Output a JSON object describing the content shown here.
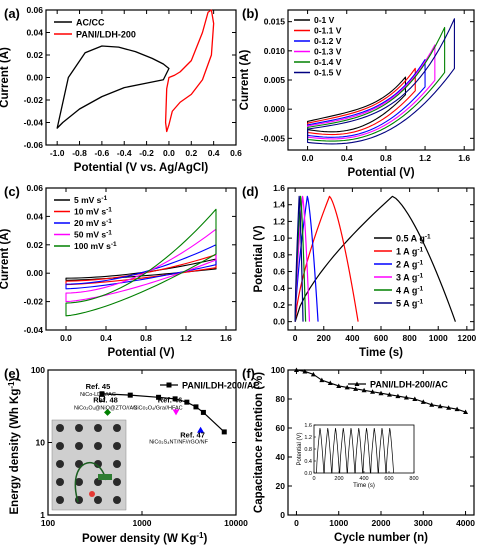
{
  "chart_data": [
    {
      "panel": "(a)",
      "type": "line",
      "xlabel": "Potential (V vs. Ag/AgCl)",
      "ylabel": "Current (A)",
      "xlim": [
        -1.1,
        0.6
      ],
      "ylim": [
        -0.06,
        0.06
      ],
      "xticks": [
        -1.0,
        -0.8,
        -0.6,
        -0.4,
        -0.2,
        0.0,
        0.2,
        0.4,
        0.6
      ],
      "xtick_labels": [
        "-1.0",
        "-0.8",
        "-0.6",
        "-0.4",
        "-0.2",
        "0.0",
        "0.2",
        "0.4",
        "0.6"
      ],
      "yticks": [
        -0.06,
        -0.04,
        -0.02,
        0.0,
        0.02,
        0.04,
        0.06
      ],
      "ytick_labels": [
        "-0.06",
        "-0.04",
        "-0.02",
        "0.00",
        "0.02",
        "0.04",
        "0.06"
      ],
      "legend": "top-left",
      "series": [
        {
          "name": "AC/CC",
          "color": "#000000",
          "x": [
            -1.0,
            -0.9,
            -0.75,
            -0.6,
            -0.45,
            -0.3,
            -0.15,
            -0.05,
            0.0,
            -0.05,
            -0.2,
            -0.4,
            -0.6,
            -0.8,
            -0.95,
            -1.0
          ],
          "y": [
            -0.045,
            0.0,
            0.022,
            0.028,
            0.027,
            0.023,
            0.017,
            0.012,
            0.008,
            -0.002,
            -0.005,
            -0.009,
            -0.017,
            -0.028,
            -0.04,
            -0.045
          ]
        },
        {
          "name": "PANI/LDH-200",
          "color": "#ff0000",
          "x": [
            0.0,
            0.05,
            0.1,
            0.2,
            0.3,
            0.35,
            0.38,
            0.4,
            0.38,
            0.3,
            0.2,
            0.1,
            0.03,
            0.0,
            -0.02,
            -0.03,
            -0.02,
            0.0
          ],
          "y": [
            0.0,
            0.002,
            0.005,
            0.015,
            0.04,
            0.058,
            0.06,
            0.048,
            0.02,
            -0.002,
            -0.015,
            -0.022,
            -0.03,
            -0.042,
            -0.048,
            -0.04,
            -0.01,
            0.0
          ]
        }
      ]
    },
    {
      "panel": "(b)",
      "type": "line",
      "xlabel": "Potential (V)",
      "ylabel": "Current (A)",
      "xlim": [
        -0.2,
        1.7
      ],
      "ylim": [
        -0.007,
        0.017
      ],
      "xticks": [
        0.0,
        0.4,
        0.8,
        1.2,
        1.6
      ],
      "xtick_labels": [
        "0.0",
        "0.4",
        "0.8",
        "1.2",
        "1.6"
      ],
      "yticks": [
        -0.005,
        0.0,
        0.005,
        0.01,
        0.015
      ],
      "ytick_labels": [
        "-0.005",
        "0.000",
        "0.005",
        "0.010",
        "0.015"
      ],
      "legend": "top-left",
      "series": [
        {
          "name": "0-1 V",
          "color": "#000000",
          "vmax": 1.0,
          "ipeak": 0.0055,
          "ilow": -0.0035
        },
        {
          "name": "0-1.1 V",
          "color": "#ff0000",
          "vmax": 1.1,
          "ipeak": 0.007,
          "ilow": -0.004
        },
        {
          "name": "0-1.2 V",
          "color": "#0000ff",
          "vmax": 1.2,
          "ipeak": 0.0085,
          "ilow": -0.0045
        },
        {
          "name": "0-1.3 V",
          "color": "#ff00ff",
          "vmax": 1.3,
          "ipeak": 0.011,
          "ilow": -0.0048
        },
        {
          "name": "0-1.4 V",
          "color": "#008000",
          "vmax": 1.4,
          "ipeak": 0.014,
          "ilow": -0.0052
        },
        {
          "name": "0-1.5 V",
          "color": "#000080",
          "vmax": 1.5,
          "ipeak": 0.0155,
          "ilow": -0.0057
        }
      ]
    },
    {
      "panel": "(c)",
      "type": "line",
      "xlabel": "Potential (V)",
      "ylabel": "Current (A)",
      "xlim": [
        -0.2,
        1.7
      ],
      "ylim": [
        -0.04,
        0.06
      ],
      "xticks": [
        0.0,
        0.4,
        0.8,
        1.2,
        1.6
      ],
      "xtick_labels": [
        "0.0",
        "0.4",
        "0.8",
        "1.2",
        "1.6"
      ],
      "yticks": [
        -0.04,
        -0.02,
        0.0,
        0.02,
        0.04,
        0.06
      ],
      "ytick_labels": [
        "-0.04",
        "-0.02",
        "0.00",
        "0.02",
        "0.04",
        "0.06"
      ],
      "legend": "top-left",
      "series": [
        {
          "name": "5 mV s",
          "sup": "-1",
          "color": "#000000",
          "ipeak": 0.01,
          "ilow": -0.005
        },
        {
          "name": "10 mV s",
          "sup": "-1",
          "color": "#ff0000",
          "ipeak": 0.013,
          "ilow": -0.008
        },
        {
          "name": "20 mV s",
          "sup": "-1",
          "color": "#0000ff",
          "ipeak": 0.02,
          "ilow": -0.011
        },
        {
          "name": "50 mV s",
          "sup": "-1",
          "color": "#ff00ff",
          "ipeak": 0.031,
          "ilow": -0.02
        },
        {
          "name": "100 mV s",
          "sup": "-1",
          "color": "#008000",
          "ipeak": 0.045,
          "ilow": -0.03
        }
      ]
    },
    {
      "panel": "(d)",
      "type": "line",
      "xlabel": "Time (s)",
      "ylabel": "Potential (V)",
      "xlim": [
        -50,
        1250
      ],
      "ylim": [
        -0.1,
        1.6
      ],
      "xticks": [
        0,
        200,
        400,
        600,
        800,
        1000,
        1200
      ],
      "xtick_labels": [
        "0",
        "200",
        "400",
        "600",
        "800",
        "1000",
        "1200"
      ],
      "yticks": [
        0.0,
        0.2,
        0.4,
        0.6,
        0.8,
        1.0,
        1.2,
        1.4,
        1.6
      ],
      "ytick_labels": [
        "0.0",
        "0.2",
        "0.4",
        "0.6",
        "0.8",
        "1.0",
        "1.2",
        "1.4",
        "1.6"
      ],
      "legend": "right",
      "series": [
        {
          "name": "0.5 A g",
          "sup": "-1",
          "color": "#000000",
          "tc": 680,
          "td": 1120
        },
        {
          "name": "1 A g",
          "sup": "-1",
          "color": "#ff0000",
          "tc": 240,
          "td": 440
        },
        {
          "name": "2 A g",
          "sup": "-1",
          "color": "#0000ff",
          "tc": 85,
          "td": 160
        },
        {
          "name": "3 A g",
          "sup": "-1",
          "color": "#ff00ff",
          "tc": 52,
          "td": 100
        },
        {
          "name": "4 A g",
          "sup": "-1",
          "color": "#008000",
          "tc": 38,
          "td": 73
        },
        {
          "name": "5 A g",
          "sup": "-1",
          "color": "#000080",
          "tc": 28,
          "td": 55
        }
      ]
    },
    {
      "panel": "(e)",
      "type": "scatter",
      "xlabel": "Power density (W Kg",
      "xlabel_sup": "-1",
      "xlabel_end": ")",
      "ylabel": "Energy density (Wh Kg",
      "ylabel_sup": "-1",
      "ylabel_end": ")",
      "xscale": "log",
      "yscale": "log",
      "xlim": [
        100,
        10000
      ],
      "ylim": [
        1,
        100
      ],
      "xticks": [
        100,
        1000,
        10000
      ],
      "xtick_labels": [
        "100",
        "1000",
        "10000"
      ],
      "yticks": [
        1,
        10,
        100
      ],
      "ytick_labels": [
        "1",
        "10",
        "100"
      ],
      "legend": "top-right",
      "series": [
        {
          "name": "PANI/LDH-200//AC",
          "color": "#000000",
          "x": [
            375,
            750,
            1500,
            2250,
            3000,
            3750,
            4500,
            7500
          ],
          "y": [
            47,
            45,
            42,
            40,
            36,
            31,
            26,
            14
          ]
        }
      ],
      "references": [
        {
          "label": "Ref. 45",
          "sublabel": "NiCo-LDH//AC",
          "x": 375,
          "y": 40,
          "color": "#000000",
          "marker": "square-open"
        },
        {
          "label": "Ref. 48",
          "sublabel": "NiCo₂O₄@NiO@ZTO//AC",
          "x": 430,
          "y": 26,
          "color": "#008000",
          "marker": "diamond"
        },
        {
          "label": "Ref. 46",
          "sublabel": "NiCo₂O₄/Gra//HFAC",
          "x": 2300,
          "y": 26,
          "color": "#ff00ff",
          "marker": "triangle-down"
        },
        {
          "label": "Ref. 47",
          "sublabel": "NiCo₂S₄NT/NF//rGO/NF",
          "x": 4200,
          "y": 15,
          "color": "#0000ff",
          "marker": "triangle-up"
        }
      ]
    },
    {
      "panel": "(f)",
      "type": "line",
      "xlabel": "Cycle number (n)",
      "ylabel": "Capacitance retention (%)",
      "xlim": [
        -200,
        4200
      ],
      "ylim": [
        0,
        100
      ],
      "xticks": [
        0,
        1000,
        2000,
        3000,
        4000
      ],
      "xtick_labels": [
        "0",
        "1000",
        "2000",
        "3000",
        "4000"
      ],
      "yticks": [
        0,
        20,
        40,
        60,
        80,
        100
      ],
      "ytick_labels": [
        "0",
        "20",
        "40",
        "60",
        "80",
        "100"
      ],
      "legend": "top-right",
      "series": [
        {
          "name": "PANI/LDH-200//AC",
          "color": "#000000",
          "x": [
            0,
            200,
            400,
            600,
            800,
            1000,
            1200,
            1400,
            1600,
            1800,
            2000,
            2200,
            2400,
            2600,
            2800,
            3000,
            3200,
            3400,
            3600,
            3800,
            4000
          ],
          "y": [
            100,
            99,
            97,
            93,
            91,
            89,
            88,
            87,
            86,
            85,
            84,
            83,
            82,
            81,
            80,
            78,
            76,
            75,
            74,
            73,
            71
          ]
        }
      ],
      "inset": {
        "xlabel": "Time (s)",
        "ylabel": "Potential (V)",
        "xlim": [
          0,
          800
        ],
        "ylim": [
          0,
          1.6
        ],
        "xticks": [
          0,
          200,
          400,
          600,
          800
        ],
        "xtick_labels": [
          "0",
          "200",
          "400",
          "600",
          "800"
        ],
        "yticks": [
          0.0,
          0.4,
          0.8,
          1.2,
          1.6
        ],
        "ytick_labels": [
          "0.0",
          "0.4",
          "0.8",
          "1.2",
          "1.6"
        ],
        "cycles": 10,
        "period": 62,
        "vmax": 1.5
      }
    }
  ]
}
